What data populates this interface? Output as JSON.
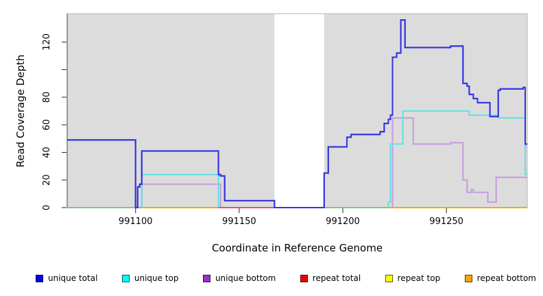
{
  "chart_data": {
    "type": "line",
    "subtype": "step",
    "title": "",
    "xlabel": "Coordinate in Reference Genome",
    "ylabel": "Read Coverage Depth",
    "xlim": [
      991067,
      991289
    ],
    "ylim": [
      0,
      140
    ],
    "x_ticks": [
      991100,
      991150,
      991200,
      991250
    ],
    "y_ticks": [
      0,
      20,
      40,
      60,
      80,
      100,
      120
    ],
    "y_tick_labels": [
      "0",
      "20",
      "40",
      "60",
      "80",
      "",
      "120"
    ],
    "grid": "off",
    "panel_bg": "#DCDCDC",
    "panel_border": "#B3B3B3",
    "axis_color": "#444444",
    "gap_region": {
      "start": 991167,
      "end": 991191,
      "color": "#FFFFFF"
    },
    "legend_position": "bottom",
    "series": [
      {
        "name": "repeat total",
        "color": "#DD2222",
        "line_width": 2,
        "steps": [
          [
            991067,
            0
          ],
          [
            991289,
            0
          ]
        ]
      },
      {
        "name": "repeat top",
        "color": "#F0F000",
        "line_width": 2,
        "steps": [
          [
            991067,
            0
          ],
          [
            991289,
            0
          ]
        ]
      },
      {
        "name": "repeat bottom",
        "color": "#FFA500",
        "line_width": 2,
        "steps": [
          [
            991067,
            0
          ],
          [
            991289,
            0
          ]
        ]
      },
      {
        "name": "unique bottom",
        "color": "#C49BE0",
        "line_width": 2,
        "steps": [
          [
            991067,
            0
          ],
          [
            991103,
            17
          ],
          [
            991141,
            0
          ],
          [
            991224,
            65
          ],
          [
            991234,
            46
          ],
          [
            991252,
            47
          ],
          [
            991258,
            20
          ],
          [
            991260,
            11
          ],
          [
            991262,
            13
          ],
          [
            991263,
            11
          ],
          [
            991270,
            4
          ],
          [
            991274,
            22
          ],
          [
            991289,
            22
          ]
        ]
      },
      {
        "name": "unique top",
        "color": "#5FE2E2",
        "line_width": 2,
        "steps": [
          [
            991067,
            0
          ],
          [
            991103,
            24
          ],
          [
            991140,
            0
          ],
          [
            991222,
            4
          ],
          [
            991223,
            46
          ],
          [
            991229,
            70
          ],
          [
            991261,
            67
          ],
          [
            991275,
            65
          ],
          [
            991288,
            24
          ],
          [
            991289,
            24
          ]
        ]
      },
      {
        "name": "unique total",
        "color": "#3434DF",
        "line_width": 2,
        "steps": [
          [
            991067,
            49
          ],
          [
            991100,
            0
          ],
          [
            991101,
            15
          ],
          [
            991102,
            17
          ],
          [
            991103,
            41
          ],
          [
            991140,
            24
          ],
          [
            991141,
            23
          ],
          [
            991143,
            5
          ],
          [
            991167,
            0
          ],
          [
            991191,
            25
          ],
          [
            991193,
            44
          ],
          [
            991202,
            51
          ],
          [
            991204,
            53
          ],
          [
            991218,
            55
          ],
          [
            991220,
            61
          ],
          [
            991222,
            64
          ],
          [
            991223,
            67
          ],
          [
            991224,
            109
          ],
          [
            991226,
            112
          ],
          [
            991228,
            136
          ],
          [
            991230,
            116
          ],
          [
            991252,
            117
          ],
          [
            991258,
            90
          ],
          [
            991260,
            88
          ],
          [
            991261,
            82
          ],
          [
            991263,
            79
          ],
          [
            991265,
            76
          ],
          [
            991271,
            66
          ],
          [
            991275,
            85
          ],
          [
            991276,
            86
          ],
          [
            991287,
            87
          ],
          [
            991288,
            46
          ],
          [
            991289,
            46
          ]
        ]
      }
    ],
    "observed_zero_line_segments": [
      {
        "start": 991067,
        "end": 991103,
        "color": "#7CC87C"
      },
      {
        "start": 991103,
        "end": 991140,
        "color": "#FFA500"
      },
      {
        "start": 991140,
        "end": 991168,
        "color": "#E05570"
      },
      {
        "start": 991191,
        "end": 991222,
        "color": "#7CC87C"
      },
      {
        "start": 991222,
        "end": 991289,
        "color": "#FFA500"
      }
    ],
    "legend": [
      {
        "label": "unique total",
        "color": "#0000EE"
      },
      {
        "label": "unique top",
        "color": "#00FFFF"
      },
      {
        "label": "unique bottom",
        "color": "#9932CC"
      },
      {
        "label": "repeat total",
        "color": "#EE0000"
      },
      {
        "label": "repeat top",
        "color": "#FFFF00"
      },
      {
        "label": "repeat bottom",
        "color": "#FFA500"
      }
    ]
  }
}
